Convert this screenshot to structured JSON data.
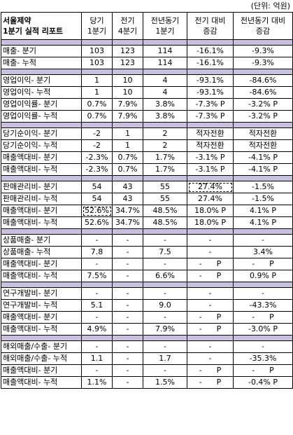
{
  "unit_label": "(단위: 억원)",
  "header": {
    "title_line1": "서울제약",
    "title_line2": "1분기 실적 리포트",
    "col1_line1": "당기",
    "col1_line2": "1분기",
    "col2_line1": "전기",
    "col2_line2": "4분기",
    "col3_line1": "전년동기",
    "col3_line2": "1분기",
    "col4_line1": "전기 대비",
    "col4_line2": "증감",
    "col5_line1": "전년동기 대비",
    "col5_line2": "증감"
  },
  "sections": [
    {
      "rows": [
        {
          "label": "매출- 분기",
          "v": [
            "103",
            "123",
            "114",
            "-16.1%",
            "-9.3%"
          ]
        },
        {
          "label": "매출- 누적",
          "v": [
            "103",
            "123",
            "114",
            "-16.1%",
            "-9.3%"
          ]
        }
      ]
    },
    {
      "rows": [
        {
          "label": "영업이익- 분기",
          "v": [
            "1",
            "10",
            "4",
            "-93.1%",
            "-84.6%"
          ]
        },
        {
          "label": "영업이익- 누적",
          "v": [
            "1",
            "10",
            "4",
            "-93.1%",
            "-84.6%"
          ]
        },
        {
          "label": "영업이익률- 분기",
          "v": [
            "0.7%",
            "7.9%",
            "3.8%",
            "-7.3% P",
            "-3.2% P"
          ]
        },
        {
          "label": "영업이익률- 누적",
          "v": [
            "0.7%",
            "7.9%",
            "3.8%",
            "-7.3% P",
            "-3.2% P"
          ]
        }
      ]
    },
    {
      "rows": [
        {
          "label": "당기순이익- 분기",
          "v": [
            "-2",
            "1",
            "2",
            "적자전환",
            "적자전환"
          ]
        },
        {
          "label": "당기순이익- 누적",
          "v": [
            "-2",
            "1",
            "2",
            "적자전환",
            "적자전환"
          ]
        },
        {
          "label": "매출액대비- 분기",
          "v": [
            "-2.3%",
            "0.7%",
            "1.7%",
            "-3.1% P",
            "-4.1% P"
          ]
        },
        {
          "label": "매출액대비- 누적",
          "v": [
            "-2.3%",
            "0.7%",
            "1.7%",
            "-3.1% P",
            "-4.1% P"
          ]
        }
      ]
    },
    {
      "rows": [
        {
          "label": "판매관리비- 분기",
          "v": [
            "54",
            "43",
            "55",
            "27.4%",
            "-1.5%"
          ]
        },
        {
          "label": "판매관리비- 누적",
          "v": [
            "54",
            "43",
            "55",
            "27.4%",
            "-1.5%"
          ]
        },
        {
          "label": "매출액대비- 분기",
          "v": [
            "52.6%",
            "34.7%",
            "48.5%",
            "18.0% P",
            "4.1% P"
          ]
        },
        {
          "label": "매출액대비- 누적",
          "v": [
            "52.6%",
            "34.7%",
            "48.5%",
            "18.0% P",
            "4.1% P"
          ]
        }
      ]
    },
    {
      "rows": [
        {
          "label": "상품매출- 분기",
          "v": [
            "-",
            "-",
            "-",
            "-",
            "-"
          ]
        },
        {
          "label": "상품매출- 누적",
          "v": [
            "7.8",
            "-",
            "7.5",
            "-",
            "3.4%"
          ]
        },
        {
          "label": "매출액대비- 분기",
          "v": [
            "-",
            "-",
            "-",
            "-      P",
            "-      P"
          ]
        },
        {
          "label": "매출액대비- 누적",
          "v": [
            "7.5%",
            "-",
            "6.6%",
            "-      P",
            "0.9% P"
          ]
        }
      ]
    },
    {
      "rows": [
        {
          "label": "연구개발비- 분기",
          "v": [
            "-",
            "-",
            "-",
            "-",
            "-"
          ]
        },
        {
          "label": "연구개발비- 누적",
          "v": [
            "5.1",
            "-",
            "9.0",
            "-",
            "-43.3%"
          ]
        },
        {
          "label": "매출액대비- 분기",
          "v": [
            "-",
            "-",
            "-",
            "-      P",
            "-      P"
          ]
        },
        {
          "label": "매출액대비- 누적",
          "v": [
            "4.9%",
            "-",
            "7.9%",
            "-      P",
            "-3.0% P"
          ]
        }
      ]
    },
    {
      "rows": [
        {
          "label": "해외매출/수출- 분기",
          "v": [
            "-",
            "-",
            "-",
            "-",
            "-"
          ]
        },
        {
          "label": "해외매출/수출- 누적",
          "v": [
            "1.1",
            "-",
            "1.7",
            "-",
            "-35.3%"
          ]
        },
        {
          "label": "매출액대비- 분기",
          "v": [
            "-",
            "-",
            "-",
            "-      P",
            "-      P"
          ]
        },
        {
          "label": "매출액대비- 누적",
          "v": [
            "1.1%",
            "-",
            "1.5%",
            "-      P",
            "-0.4% P"
          ]
        }
      ]
    }
  ]
}
